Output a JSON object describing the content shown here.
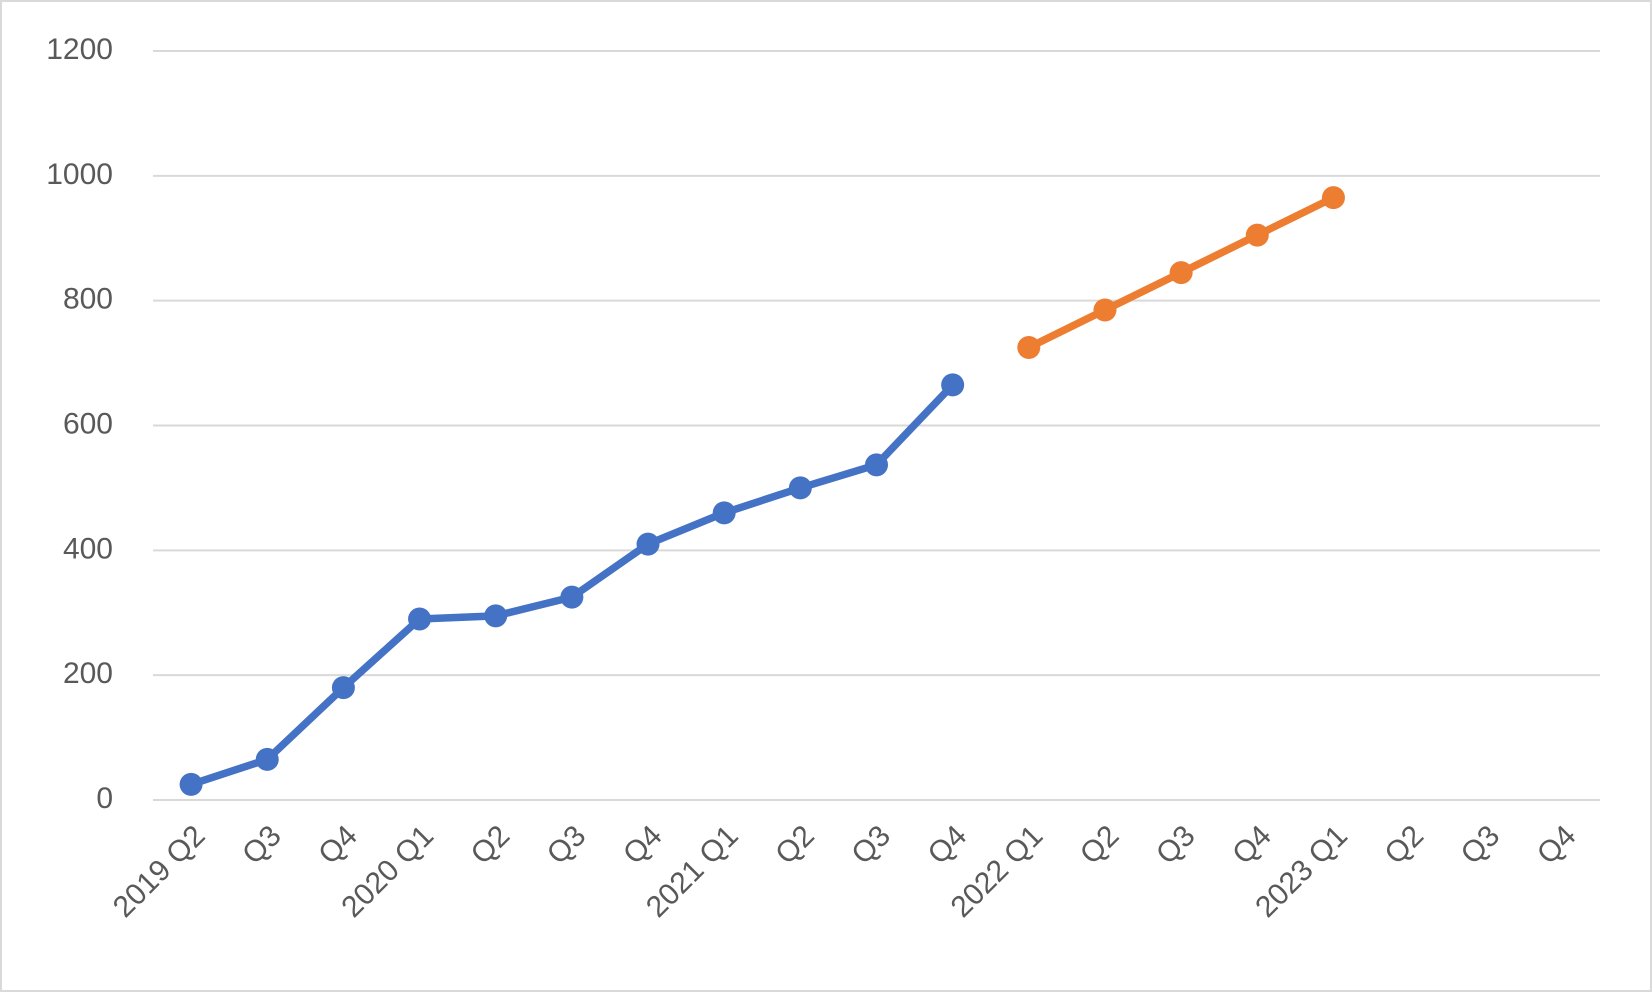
{
  "chart_data": {
    "type": "line",
    "categories": [
      "2019 Q2",
      "Q3",
      "Q4",
      "2020 Q1",
      "Q2",
      "Q3",
      "Q4",
      "2021 Q1",
      "Q2",
      "Q3",
      "Q4",
      "2022 Q1",
      "Q2",
      "Q3",
      "Q4",
      "2023 Q1",
      "Q2",
      "Q3",
      "Q4"
    ],
    "series": [
      {
        "color": "#4472c4",
        "values": [
          25,
          65,
          180,
          290,
          295,
          325,
          410,
          460,
          500,
          537,
          665,
          null,
          null,
          null,
          null,
          null,
          null,
          null,
          null
        ]
      },
      {
        "color": "#ed7d31",
        "values": [
          null,
          null,
          null,
          null,
          null,
          null,
          null,
          null,
          null,
          null,
          null,
          725,
          785,
          845,
          905,
          965,
          null,
          null,
          null
        ]
      }
    ],
    "ylim": [
      0,
      1200
    ],
    "yticks": [
      0,
      200,
      400,
      600,
      800,
      1000,
      1200
    ],
    "grid": true
  }
}
